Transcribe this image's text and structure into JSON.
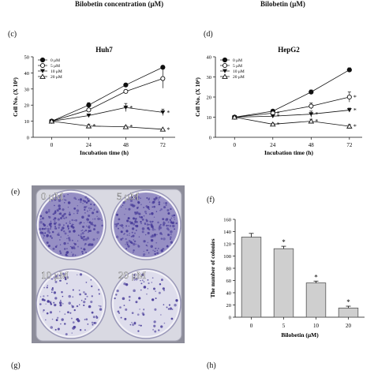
{
  "header": {
    "left_label": "Bilobetin concentration (μM)",
    "right_label": "Bilobetin (μM)"
  },
  "panel_letters": {
    "c": "(c)",
    "d": "(d)",
    "e": "(e)",
    "f": "(f)",
    "g": "(g)",
    "h": "(h)"
  },
  "photo": {
    "wells": [
      "0 μM",
      "5 μM",
      "10 μM",
      "20 μM"
    ],
    "colors": {
      "plate": "#d9d9e2",
      "stain_dense": "#4a3e9a",
      "stain_light": "#b9b6d8",
      "well_bg": "#f2f1f7"
    }
  },
  "chart_data": [
    {
      "type": "line",
      "title": "Huh7",
      "xlabel": "Incubation time (h)",
      "ylabel": "Cell No. (X 10⁴)",
      "x": [
        0,
        24,
        48,
        72
      ],
      "ylim": [
        0,
        50
      ],
      "yticks": [
        0,
        10,
        20,
        30,
        40,
        50
      ],
      "xticks": [
        "0",
        "24",
        "48",
        "72"
      ],
      "legend_position": "top-left",
      "series": [
        {
          "name": "0 μM",
          "marker": "filled-circle",
          "values": [
            10,
            20,
            32.5,
            43.5
          ],
          "errors": [
            0.5,
            1.5,
            1.0,
            1.0
          ],
          "star": [
            false,
            false,
            false,
            false
          ]
        },
        {
          "name": "5 μM",
          "marker": "open-circle",
          "values": [
            10,
            17,
            28.5,
            36.5
          ],
          "errors": [
            0.5,
            1.0,
            1.0,
            6.0
          ],
          "star": [
            false,
            false,
            false,
            false
          ]
        },
        {
          "name": "10 μM",
          "marker": "filled-triangle",
          "values": [
            10,
            13.5,
            18.5,
            15.5
          ],
          "errors": [
            0.5,
            1.0,
            2.5,
            2.0
          ],
          "star": [
            false,
            false,
            true,
            true
          ]
        },
        {
          "name": "20 μM",
          "marker": "open-triangle",
          "values": [
            10,
            7,
            6.5,
            5
          ],
          "errors": [
            0.5,
            1.0,
            0.5,
            0.3
          ],
          "star": [
            false,
            true,
            true,
            true
          ]
        }
      ],
      "annotations": [
        "*",
        "*",
        "*",
        "**"
      ]
    },
    {
      "type": "line",
      "title": "HepG2",
      "xlabel": "Incubation time (h)",
      "ylabel": "Cell No. (X 10⁴)",
      "x": [
        0,
        24,
        48,
        72
      ],
      "ylim": [
        0,
        40
      ],
      "yticks": [
        0,
        10,
        20,
        30,
        40
      ],
      "xticks": [
        "0",
        "24",
        "48",
        "72"
      ],
      "legend_position": "top-left",
      "series": [
        {
          "name": "0 μM",
          "marker": "filled-circle",
          "values": [
            10,
            13,
            22.5,
            33.5
          ],
          "errors": [
            0.3,
            0.5,
            1.0,
            1.0
          ],
          "star": [
            false,
            false,
            false,
            false
          ]
        },
        {
          "name": "5 μM",
          "marker": "open-circle",
          "values": [
            10,
            12,
            15.5,
            20
          ],
          "errors": [
            0.3,
            0.5,
            1.5,
            2.5
          ],
          "star": [
            false,
            true,
            false,
            true
          ]
        },
        {
          "name": "10 μM",
          "marker": "filled-triangle",
          "values": [
            10,
            10.5,
            11.5,
            13.5
          ],
          "errors": [
            0.3,
            0.5,
            1.5,
            1.0
          ],
          "star": [
            false,
            true,
            true,
            true
          ]
        },
        {
          "name": "20 μM",
          "marker": "open-triangle",
          "values": [
            10,
            6.5,
            8,
            5.5
          ],
          "errors": [
            0.3,
            0.5,
            1.0,
            0.8
          ],
          "star": [
            false,
            true,
            true,
            true
          ]
        }
      ],
      "annotations": [
        "*",
        "*",
        "*",
        "*",
        "*",
        "*"
      ]
    },
    {
      "type": "bar",
      "title": "",
      "xlabel": "Bilobetin (μM)",
      "ylabel": "The number of colonies",
      "categories": [
        "0",
        "5",
        "10",
        "20"
      ],
      "values": [
        131,
        112,
        56,
        15
      ],
      "errors": [
        6,
        4,
        3,
        3
      ],
      "significant": [
        false,
        true,
        true,
        true
      ],
      "ylim": [
        0,
        160
      ],
      "yticks": [
        0,
        20,
        40,
        60,
        80,
        100,
        120,
        140,
        160
      ],
      "colors": {
        "bar_fill": "#cfcfcf",
        "bar_stroke": "#555555"
      }
    }
  ]
}
